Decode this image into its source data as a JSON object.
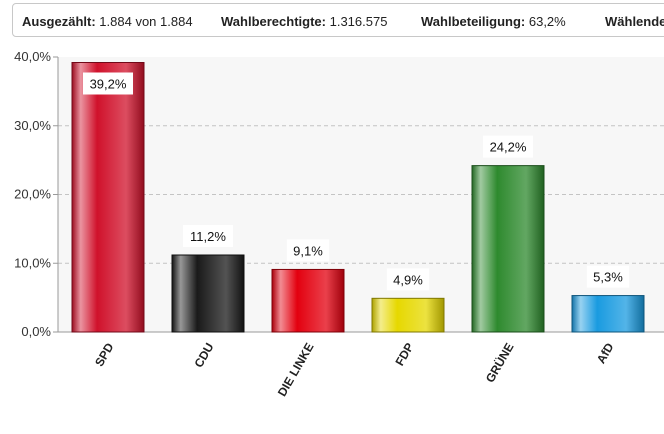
{
  "infobar": {
    "counted_label": "Ausgezählt:",
    "counted_value": "1.884 von 1.884",
    "eligible_label": "Wahlberechtigte:",
    "eligible_value": "1.316.575",
    "turnout_label": "Wahlbeteiligung:",
    "turnout_value": "63,2%",
    "voters_label": "Wählende:"
  },
  "chart_data": {
    "type": "bar",
    "title": "",
    "xlabel": "",
    "ylabel": "",
    "ylim": [
      0,
      40
    ],
    "yticks": [
      0,
      10,
      20,
      30,
      40
    ],
    "ytick_labels": [
      "0,0%",
      "10,0%",
      "20,0%",
      "30,0%",
      "40,0%"
    ],
    "grid": true,
    "categories": [
      "SPD",
      "CDU",
      "DIE LINKE",
      "FDP",
      "GRÜNE",
      "AfD"
    ],
    "values": [
      39.2,
      11.2,
      9.1,
      4.9,
      24.2,
      5.3
    ],
    "value_labels": [
      "39,2%",
      "11,2%",
      "9,1%",
      "4,9%",
      "24,2%",
      "5,3%"
    ],
    "colors": [
      "#d0112b",
      "#1a1a1a",
      "#e3000f",
      "#e6d800",
      "#2e8a2e",
      "#1a9be0"
    ]
  }
}
